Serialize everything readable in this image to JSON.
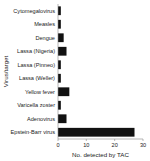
{
  "chart_data": {
    "type": "bar",
    "orientation": "horizontal",
    "categories": [
      "Epstein-Barr virus",
      "Adenovirus",
      "Varicella zoster",
      "Yellow fever",
      "Lassa (Weller)",
      "Lassa (Pinneo)",
      "Lassa (Nigeria)",
      "Dengue",
      "Measles",
      "Cytomegalovirus"
    ],
    "values": [
      27,
      3,
      1,
      4,
      1,
      1,
      3,
      2,
      1,
      1
    ],
    "color": "#111111",
    "xlabel": "No. detected by TAC",
    "ylabel": "Virus/target",
    "xlim": [
      0,
      30
    ],
    "xticks": [
      0,
      10,
      20,
      30
    ],
    "grid": false
  }
}
